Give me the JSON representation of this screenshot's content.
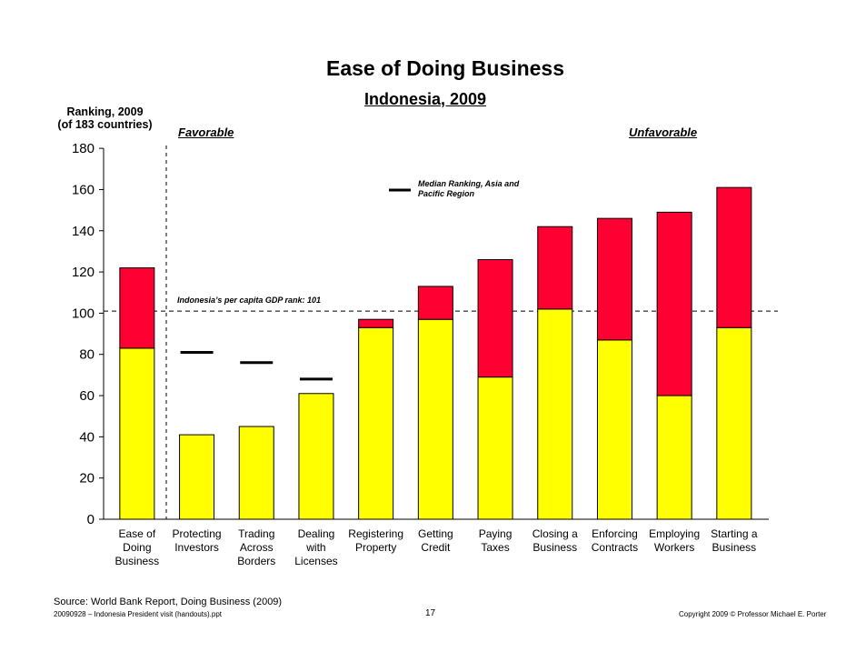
{
  "header": {
    "title": "Ease of Doing Business",
    "subtitle": "Indonesia, 2009"
  },
  "axis": {
    "ylabel_line1": "Ranking, 2009",
    "ylabel_line2": "(of 183 countries)"
  },
  "annotations": {
    "favorable": "Favorable",
    "unfavorable": "Unfavorable",
    "legend_line1": "Median Ranking, Asia and",
    "legend_line2": "Pacific Region",
    "reference": "Indonesia’s per capita GDP rank: 101"
  },
  "footer": {
    "source": "Source: World Bank Report, Doing Business (2009)",
    "left": "20090928 – Indonesia President visit (handouts).ppt",
    "page": "17",
    "copyright": "Copyright 2009 © Professor Michael E. Porter"
  },
  "colors": {
    "median_fill": "#ffff00",
    "gap_fill": "#ff0033",
    "median_marker": "#000000",
    "axis": "#000000"
  },
  "chart_data": {
    "type": "bar",
    "stacked": true,
    "ylim": [
      0,
      180
    ],
    "yticks": [
      0,
      20,
      40,
      60,
      80,
      100,
      120,
      140,
      160,
      180
    ],
    "reference_line": 101,
    "categories": [
      [
        "Ease of",
        "Doing",
        "Business"
      ],
      [
        "Protecting",
        "Investors"
      ],
      [
        "Trading",
        "Across",
        "Borders"
      ],
      [
        "Dealing",
        "with",
        "Licenses"
      ],
      [
        "Registering",
        "Property"
      ],
      [
        "Getting",
        "Credit"
      ],
      [
        "Paying",
        "Taxes"
      ],
      [
        "Closing a",
        "Business"
      ],
      [
        "Enforcing",
        "Contracts"
      ],
      [
        "Employing",
        "Workers"
      ],
      [
        "Starting a",
        "Business"
      ]
    ],
    "indonesia_rank": [
      122,
      41,
      45,
      61,
      97,
      113,
      126,
      142,
      146,
      149,
      161
    ],
    "median_rank": [
      83,
      81,
      76,
      68,
      93,
      97,
      69,
      102,
      87,
      60,
      93
    ]
  }
}
